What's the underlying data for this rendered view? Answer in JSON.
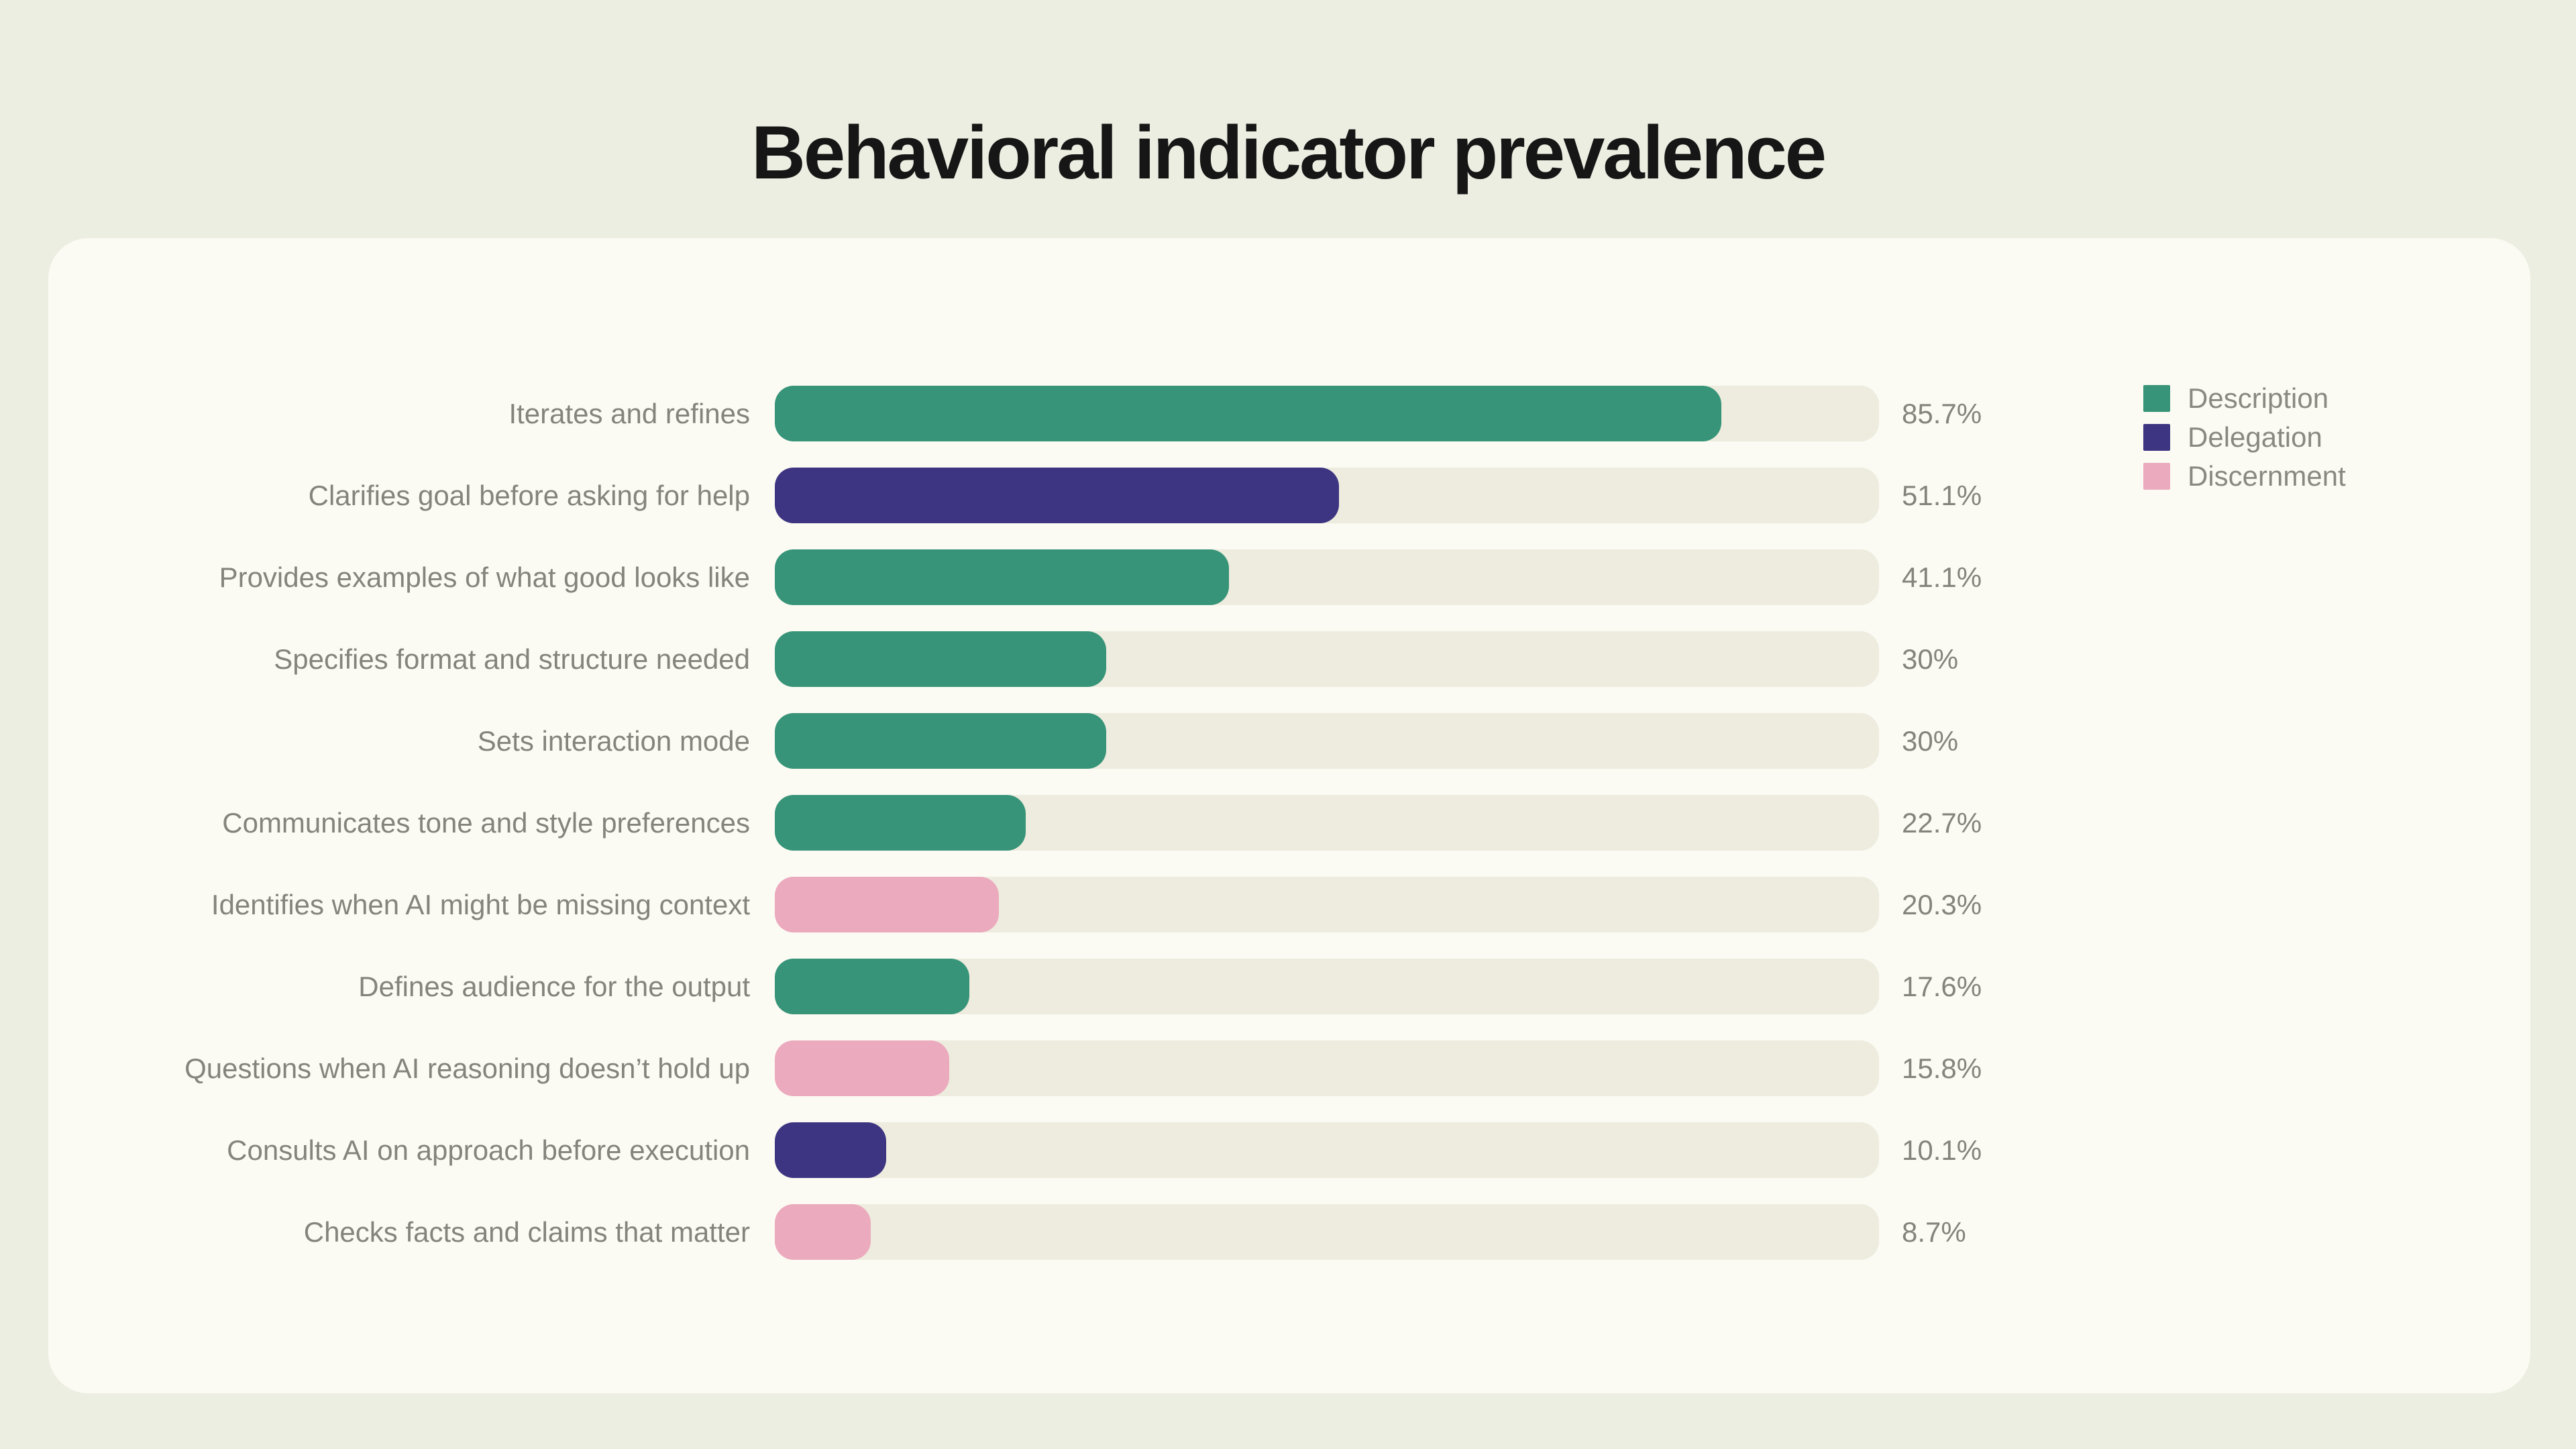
{
  "page": {
    "title": "Behavioral indicator prevalence"
  },
  "colors": {
    "page_bg": "#EDEEE2",
    "card_bg": "#FBFAF3",
    "track": "#EDECDE",
    "label_gray": "#85847C",
    "title_color": "#161616"
  },
  "chart_data": {
    "type": "bar",
    "orientation": "horizontal",
    "title": "Behavioral indicator prevalence",
    "xlabel": "",
    "ylabel": "",
    "xlim": [
      0,
      100
    ],
    "unit": "%",
    "grid": false,
    "legend_position": "top-right",
    "legend": [
      {
        "label": "Description",
        "color": "#379478"
      },
      {
        "label": "Delegation",
        "color": "#3D3581"
      },
      {
        "label": "Discernment",
        "color": "#ECAABE"
      }
    ],
    "colors": {
      "Description": "#379478",
      "Delegation": "#3D3581",
      "Discernment": "#ECAABE"
    },
    "rows": [
      {
        "label": "Iterates and refines",
        "category": "Description",
        "value": 85.7,
        "value_label": "85.7%"
      },
      {
        "label": "Clarifies goal before asking for help",
        "category": "Delegation",
        "value": 51.1,
        "value_label": "51.1%"
      },
      {
        "label": "Provides examples of what good looks like",
        "category": "Description",
        "value": 41.1,
        "value_label": "41.1%"
      },
      {
        "label": "Specifies format and structure needed",
        "category": "Description",
        "value": 30,
        "value_label": "30%"
      },
      {
        "label": "Sets interaction mode",
        "category": "Description",
        "value": 30,
        "value_label": "30%"
      },
      {
        "label": "Communicates tone and style preferences",
        "category": "Description",
        "value": 22.7,
        "value_label": "22.7%"
      },
      {
        "label": "Identifies when AI might be missing context",
        "category": "Discernment",
        "value": 20.3,
        "value_label": "20.3%"
      },
      {
        "label": "Defines audience for the output",
        "category": "Description",
        "value": 17.6,
        "value_label": "17.6%"
      },
      {
        "label": "Questions when AI reasoning doesn’t hold up",
        "category": "Discernment",
        "value": 15.8,
        "value_label": "15.8%"
      },
      {
        "label": "Consults AI on approach before execution",
        "category": "Delegation",
        "value": 10.1,
        "value_label": "10.1%"
      },
      {
        "label": "Checks facts and claims that matter",
        "category": "Discernment",
        "value": 8.7,
        "value_label": "8.7%"
      }
    ]
  }
}
